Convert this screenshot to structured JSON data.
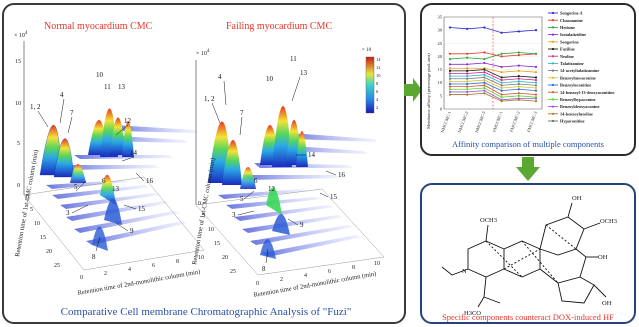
{
  "left_panel": {
    "normal_title": "Normal myocardium CMC",
    "failing_title": "Failing myocardium CMC",
    "scale_label": "× 10",
    "scale_exp": "4",
    "colorbar_exp": "× 10",
    "y_axis_label": "Retention time of 1st-CMC column (min)",
    "x_axis_label": "Retention time of 2nd-monolithic column (min)",
    "peaks": [
      "1, 2",
      "3",
      "4",
      "5",
      "6",
      "7",
      "8",
      "9",
      "10",
      "11",
      "12",
      "13",
      "14",
      "15",
      "16"
    ],
    "z_ticks": [
      "15",
      "10",
      "5",
      "0"
    ],
    "y_ticks": [
      "0",
      "5",
      "10",
      "15",
      "20",
      "25"
    ],
    "x_ticks": [
      "0",
      "2",
      "4",
      "6",
      "8",
      "10"
    ],
    "caption": "Comparative Cell membrane Chromatographic Analysis of \"Fuzi\""
  },
  "affinity": {
    "caption": "Affinity comparison of multiple components",
    "ylabel": "Membrane affinity (percentage peak area)",
    "colors": {
      "accent": "#e8362c",
      "arrow": "#5aa832",
      "caption": "#2a4fa8"
    }
  },
  "chart_data": {
    "type": "line",
    "categories": [
      "NMCCMC-1",
      "NMCCMC-2",
      "NMCCMC-3",
      "FMCCMC-1",
      "FMCCMC-2",
      "FMCCMC-3"
    ],
    "ylim": [
      0,
      35
    ],
    "y_ticks": [
      0,
      5,
      10,
      15,
      20,
      25,
      30,
      35
    ],
    "series": [
      {
        "name": "Songorine A",
        "color": "#2b2bd6",
        "values": [
          31,
          30.5,
          31,
          29,
          29.5,
          30
        ]
      },
      {
        "name": "Chasmanine",
        "color": "#e43a2b",
        "values": [
          21,
          21,
          21.5,
          20,
          20.5,
          21
        ]
      },
      {
        "name": "Hetisine",
        "color": "#2fa33a",
        "values": [
          19,
          19.5,
          19,
          21,
          21.5,
          21
        ]
      },
      {
        "name": "Isotalatizidine",
        "color": "#8a2bd6",
        "values": [
          17,
          17,
          17.5,
          16,
          16.5,
          16
        ]
      },
      {
        "name": "Songorine",
        "color": "#e3a020",
        "values": [
          15.5,
          15.5,
          15.5,
          14,
          14.5,
          14
        ]
      },
      {
        "name": "Fuziline",
        "color": "#1a1a1a",
        "values": [
          14.5,
          14.5,
          15,
          12,
          12.5,
          12
        ]
      },
      {
        "name": "Neoline",
        "color": "#d62b8a",
        "values": [
          13.5,
          13.5,
          14,
          11,
          11.5,
          11
        ]
      },
      {
        "name": "Talatizamine",
        "color": "#2bb6d6",
        "values": [
          12.5,
          12.5,
          13,
          10,
          10.5,
          10
        ]
      },
      {
        "name": "14-acetyltalatizamine",
        "color": "#7a7a7a",
        "values": [
          11.5,
          11.5,
          12,
          9,
          9.5,
          9
        ]
      },
      {
        "name": "Benzoylmesaconine",
        "color": "#d6c02b",
        "values": [
          10.5,
          10.5,
          11,
          8,
          8.5,
          8
        ]
      },
      {
        "name": "Benzoylaconitine",
        "color": "#2b6ad6",
        "values": [
          9.5,
          9.5,
          10,
          7,
          7.5,
          7
        ]
      },
      {
        "name": "14-benzoyl-13-deoxyaconitine",
        "color": "#d65a2b",
        "values": [
          8.5,
          8.5,
          9,
          5.5,
          6,
          5.5
        ]
      },
      {
        "name": "Benzoylhypaconine",
        "color": "#5ad62b",
        "values": [
          7.5,
          7.5,
          8,
          4.5,
          5,
          4.5
        ]
      },
      {
        "name": "Benzoyldeoxyaconine",
        "color": "#9a5ad6",
        "values": [
          6.5,
          6.5,
          7,
          3.5,
          4,
          4
        ]
      },
      {
        "name": "14-benzoylneoline",
        "color": "#a3772b",
        "values": [
          5.5,
          5.5,
          6,
          3,
          3.5,
          3
        ]
      }
    ],
    "legend_extra": [
      "Hypaconitine"
    ],
    "legend_position": "right"
  },
  "structure": {
    "caption": "Specific components counteract DOX-induced HF",
    "labels": [
      "OH",
      "OCH3",
      "OCH3",
      "OH",
      "OH",
      "N",
      "H3CO"
    ]
  }
}
